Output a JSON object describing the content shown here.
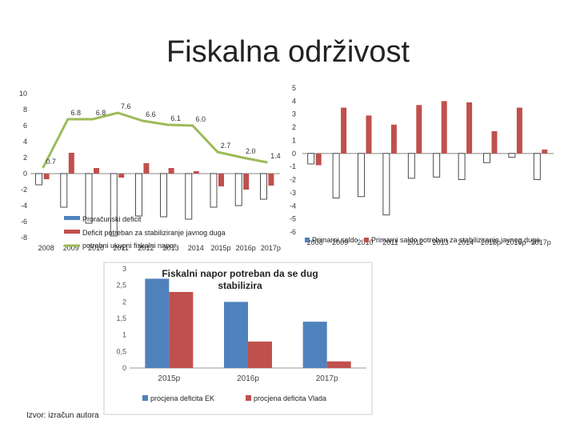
{
  "slide": {
    "title": "Fiskalna održivost",
    "source": "Izvor: izračun autora"
  },
  "chart_data": [
    {
      "type": "bar",
      "categories": [
        "2008",
        "2009",
        "2010",
        "2011",
        "2012",
        "2013",
        "2014",
        "2015p",
        "2016p",
        "2017p"
      ],
      "ylim": [
        -8,
        10
      ],
      "yticks": [
        10,
        8,
        6,
        4,
        2,
        0,
        -2,
        -4,
        -6,
        -8
      ],
      "series": [
        {
          "name": "Proračunski deficit",
          "type": "bar",
          "color": "#ffffff",
          "values": [
            -1.4,
            -4.2,
            -6.2,
            -7.8,
            -5.3,
            -5.4,
            -5.7,
            -4.2,
            -4.0,
            -3.2
          ]
        },
        {
          "name": "Deficit potreban za stabiliziranje javnog duga",
          "type": "bar",
          "color": "#c0504d",
          "values": [
            -0.7,
            2.6,
            0.7,
            -0.5,
            1.3,
            0.7,
            0.3,
            -1.6,
            -2.0,
            -1.5
          ]
        },
        {
          "name": "potrebni ukupni fiskalni napor",
          "type": "line",
          "color": "#9bbb59",
          "values": [
            0.7,
            6.8,
            6.8,
            7.6,
            6.6,
            6.1,
            6.0,
            2.7,
            2.0,
            1.4
          ],
          "labels": [
            "0.7",
            "6.8",
            "6.8",
            "7.6",
            "6.6",
            "6.1",
            "6.0",
            "2.7",
            "2.0",
            "1.4"
          ]
        }
      ]
    },
    {
      "type": "bar",
      "categories": [
        "2008",
        "2009",
        "2010",
        "2011",
        "2012",
        "2013",
        "2014",
        "2015p",
        "2016p",
        "2017p"
      ],
      "ylim": [
        -6,
        5
      ],
      "yticks": [
        5,
        4,
        3,
        2,
        1,
        0,
        -1,
        -2,
        -3,
        -4,
        -5,
        -6
      ],
      "series": [
        {
          "name": "Primarni saldo",
          "color": "#ffffff",
          "values": [
            -0.8,
            -3.4,
            -3.3,
            -4.7,
            -1.9,
            -1.8,
            -2.0,
            -0.7,
            -0.3,
            -2.0
          ]
        },
        {
          "name": "Primarni saldo potreban za stabiliziranje javnog duga",
          "color": "#c0504d",
          "values": [
            -0.9,
            3.5,
            2.9,
            2.2,
            3.7,
            4.0,
            3.9,
            1.7,
            3.5,
            0.3
          ]
        }
      ]
    },
    {
      "type": "bar",
      "title": "Fiskalni napor potreban da se dug stabilizira",
      "categories": [
        "2015p",
        "2016p",
        "2017p"
      ],
      "ylim": [
        0,
        3
      ],
      "yticks": [
        "3",
        "2,5",
        "2",
        "1,5",
        "1",
        "0,5",
        "0"
      ],
      "series": [
        {
          "name": "procjena deficita EK",
          "color": "#4f81bd",
          "values": [
            2.7,
            2.0,
            1.4
          ]
        },
        {
          "name": "procjena deficita Vlada",
          "color": "#c0504d",
          "values": [
            2.3,
            0.8,
            0.2
          ]
        }
      ]
    }
  ]
}
